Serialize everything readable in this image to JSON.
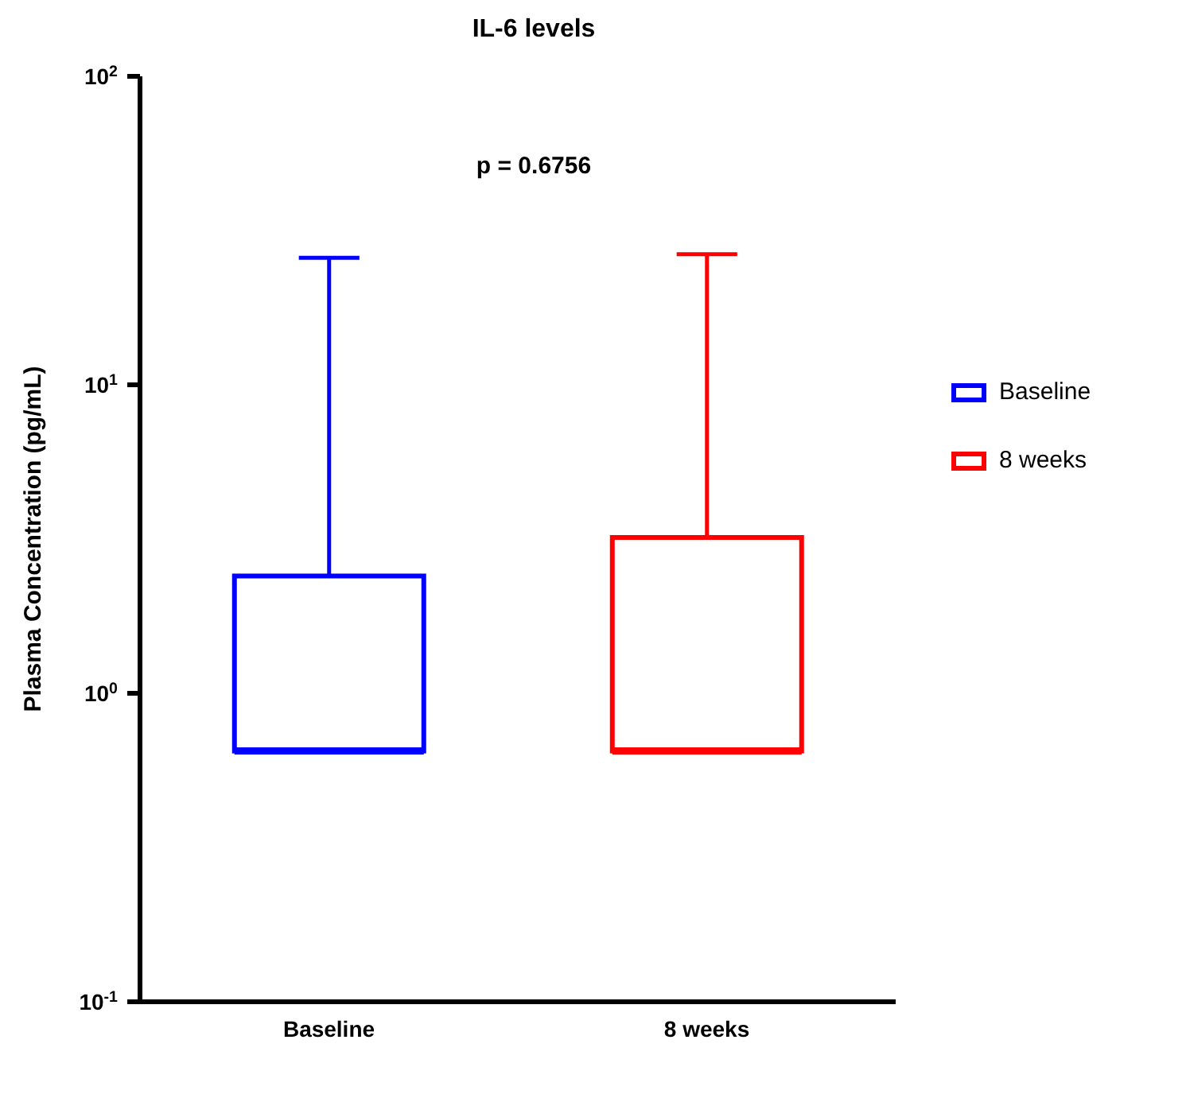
{
  "chart_data": {
    "type": "box",
    "title": "IL-6 levels",
    "ylabel": "Plasma Concentration (pg/mL)",
    "categories": [
      "Baseline",
      "8 weeks"
    ],
    "series": [
      {
        "name": "Baseline",
        "color": "#0000ff",
        "boxes": [
          {
            "low": 0.65,
            "q1": 0.65,
            "median": 0.65,
            "q3": 2.4,
            "high": 25.8
          },
          null
        ]
      },
      {
        "name": "8 weeks",
        "color": "#ff0000",
        "boxes": [
          null,
          {
            "low": 0.65,
            "q1": 0.65,
            "median": 0.65,
            "q3": 3.2,
            "high": 26.5
          }
        ]
      }
    ],
    "log": true,
    "ylim": [
      0.1,
      100
    ],
    "yticks": [
      {
        "value": 0.1,
        "label": "10$^{-1}$"
      },
      {
        "value": 1,
        "label": "10$^{0}$"
      },
      {
        "value": 10,
        "label": "10$^{1}$"
      },
      {
        "value": 100,
        "label": "10$^{2}$"
      }
    ],
    "annotations": [
      "p = 0.6756"
    ],
    "legend": "right"
  }
}
